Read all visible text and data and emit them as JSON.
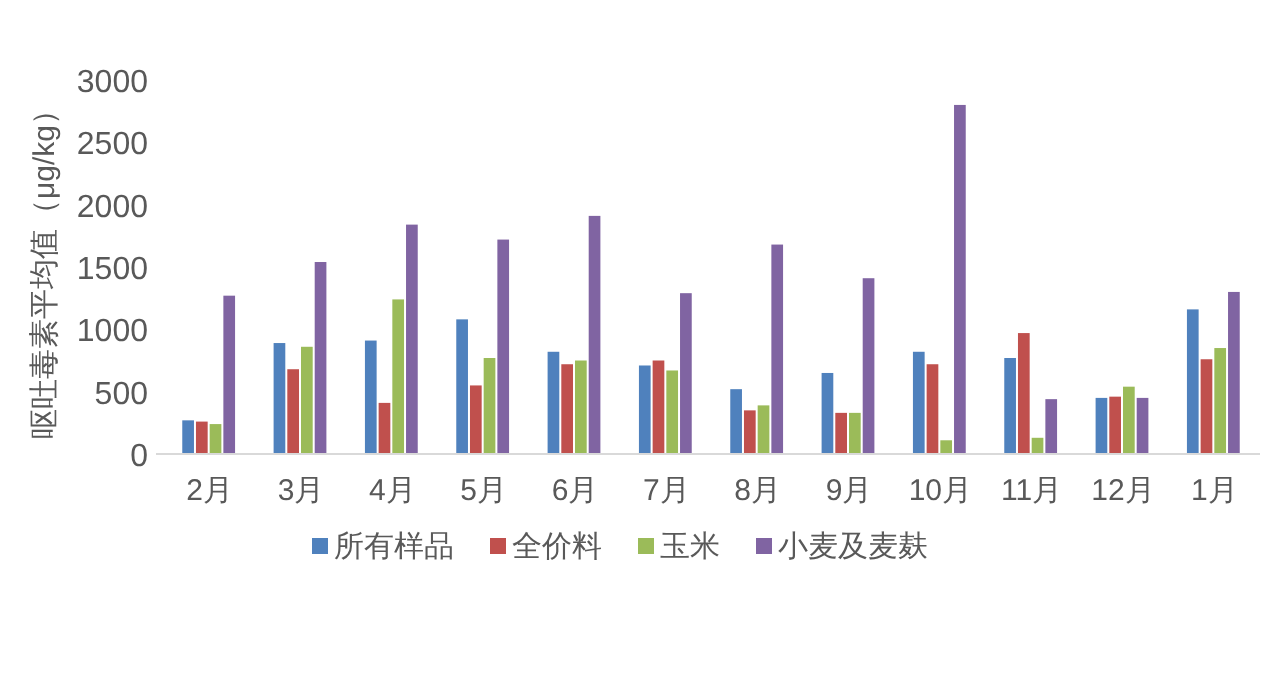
{
  "chart_data": {
    "type": "bar",
    "ylabel": "呕吐毒素平均值（μg/kg）",
    "categories": [
      "2月",
      "3月",
      "4月",
      "5月",
      "6月",
      "7月",
      "8月",
      "9月",
      "10月",
      "11月",
      "12月",
      "1月"
    ],
    "series": [
      {
        "name": "所有样品",
        "color": "#4f81bd",
        "values": [
          270,
          890,
          910,
          1080,
          820,
          710,
          520,
          650,
          820,
          770,
          450,
          1160
        ]
      },
      {
        "name": "全价料",
        "color": "#c0504d",
        "values": [
          260,
          680,
          410,
          550,
          720,
          750,
          350,
          330,
          720,
          970,
          460,
          760
        ]
      },
      {
        "name": "玉米",
        "color": "#9bbb59",
        "values": [
          240,
          860,
          1240,
          770,
          750,
          670,
          390,
          330,
          110,
          130,
          540,
          850
        ]
      },
      {
        "name": "小麦及麦麸",
        "color": "#8064a2",
        "values": [
          1270,
          1540,
          1840,
          1720,
          1910,
          1290,
          1680,
          1410,
          2800,
          440,
          450,
          1300
        ]
      }
    ],
    "ylim": [
      0,
      3000
    ],
    "yticks": [
      0,
      500,
      1000,
      1500,
      2000,
      2500,
      3000
    ],
    "grid": false,
    "legend": "bottom"
  }
}
